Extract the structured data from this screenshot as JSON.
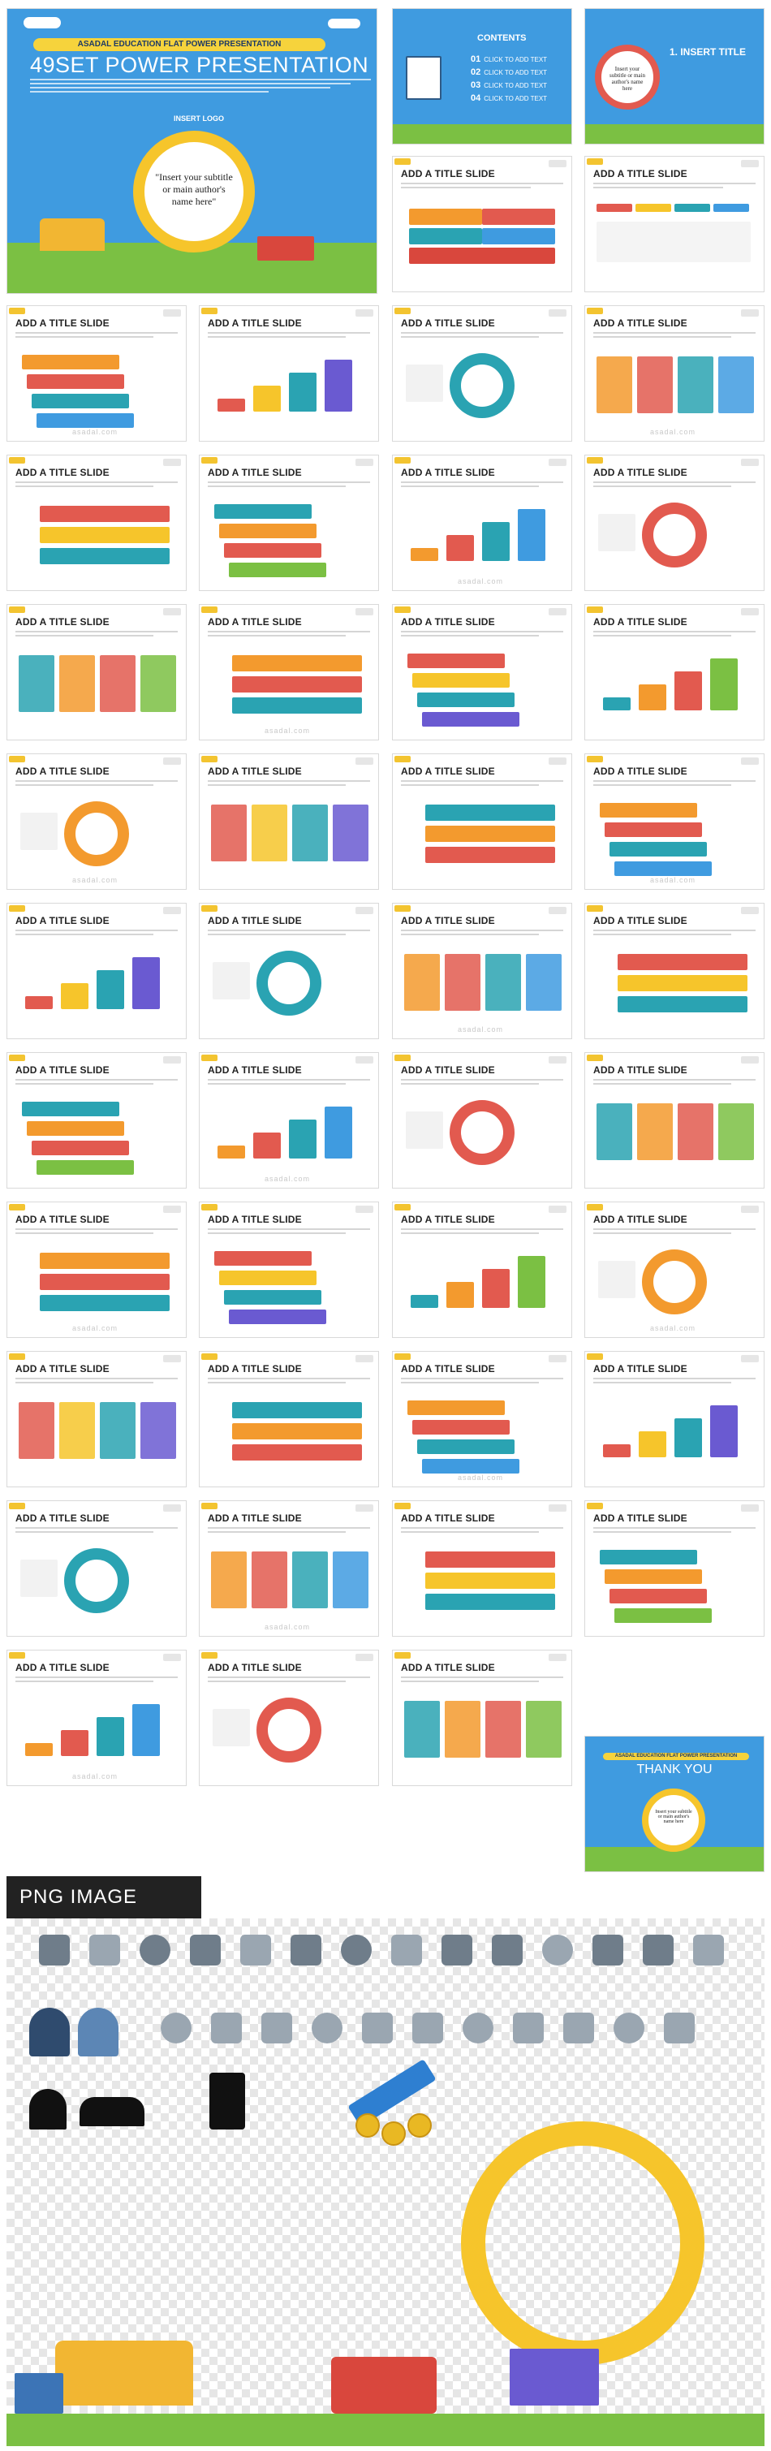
{
  "cover": {
    "ribbon": "ASADAL EDUCATION FLAT POWER PRESENTATION",
    "title": "49SET POWER PRESENTATION",
    "insert_logo": "INSERT LOGO",
    "subtitle": "\"Insert your subtitle or main author's name here\""
  },
  "contents": {
    "title": "CONTENTS",
    "items": [
      {
        "num": "01",
        "text": "CLICK TO ADD TEXT"
      },
      {
        "num": "02",
        "text": "CLICK TO ADD TEXT"
      },
      {
        "num": "03",
        "text": "CLICK TO ADD TEXT"
      },
      {
        "num": "04",
        "text": "CLICK TO ADD TEXT"
      }
    ]
  },
  "section": {
    "title": "1. INSERT TITLE",
    "ring_text": "Insert your subtitle or main author's name here"
  },
  "slide_title": "ADD A TITLE SLIDE",
  "thanks": {
    "ribbon": "ASADAL EDUCATION FLAT POWER PRESENTATION",
    "title": "THANK YOU",
    "ring_text": "Insert your subtitle or main author's name here"
  },
  "watermark": "asadal.com",
  "png_section": {
    "title": "PNG IMAGE"
  },
  "colors": {
    "blue": "#3f9be0",
    "yellow": "#f6c52b",
    "red": "#e25a4f",
    "teal": "#2aa3b2",
    "green": "#7bc043",
    "orange": "#f39a2e"
  }
}
